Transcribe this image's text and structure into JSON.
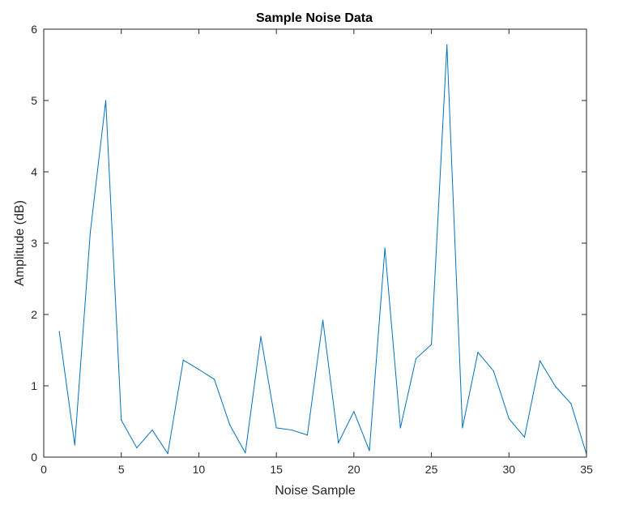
{
  "chart_data": {
    "type": "line",
    "title": "Sample Noise Data",
    "xlabel": "Noise Sample",
    "ylabel": "Amplitude (dB)",
    "xlim": [
      0,
      35
    ],
    "ylim": [
      0,
      6
    ],
    "xticks": [
      0,
      5,
      10,
      15,
      20,
      25,
      30,
      35
    ],
    "yticks": [
      0,
      1,
      2,
      3,
      4,
      5,
      6
    ],
    "grid": false,
    "legend": "none",
    "line_color": "#0072bd",
    "series": [
      {
        "x": [
          1,
          2,
          3,
          4,
          5,
          6,
          7,
          8,
          9,
          10,
          11,
          12,
          13,
          14,
          15,
          16,
          17,
          18,
          19,
          20,
          21,
          22,
          23,
          24,
          25,
          26,
          27,
          28,
          29,
          30,
          31,
          32,
          33,
          34,
          35
        ],
        "values": [
          1.76,
          0.17,
          3.15,
          5.0,
          0.52,
          0.13,
          0.38,
          0.05,
          1.36,
          1.23,
          1.09,
          0.45,
          0.06,
          1.69,
          0.41,
          0.38,
          0.31,
          1.92,
          0.2,
          0.64,
          0.09,
          2.93,
          0.41,
          1.38,
          1.58,
          5.78,
          0.41,
          1.47,
          1.21,
          0.54,
          0.28,
          1.35,
          0.99,
          0.75,
          0.04
        ]
      }
    ]
  }
}
